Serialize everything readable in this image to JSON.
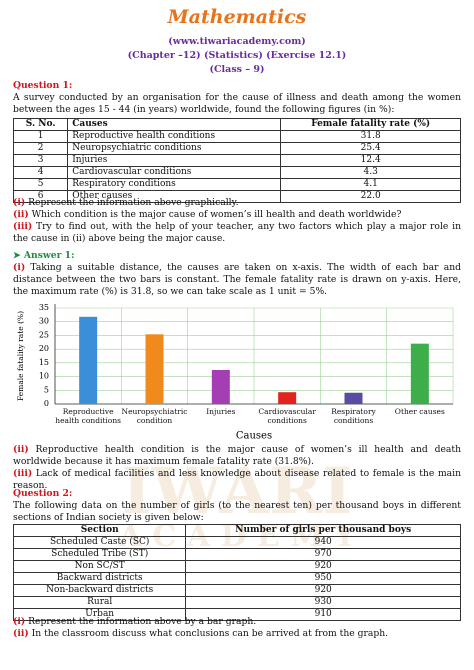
{
  "header": {
    "title": "Mathematics",
    "website": "(www.tiwariacademy.com)",
    "chapter": "(Chapter –12) (Statistics) (Exercise 12.1)",
    "class": "(Class – 9)"
  },
  "watermark": [
    "IWARI",
    "A C A D E M Y"
  ],
  "question1": {
    "label": "Question 1:",
    "text": "A survey conducted by an organisation for the cause of illness and death among the women between the ages 15 - 44 (in years) worldwide, found the following figures (in %):",
    "table": {
      "headers": [
        "S. No.",
        "Causes",
        "Female fatality rate (%)"
      ],
      "rows": [
        [
          "1",
          "Reproductive health conditions",
          "31.8"
        ],
        [
          "2",
          "Neuropsychiatric conditions",
          "25.4"
        ],
        [
          "3",
          "Injuries",
          "12.4"
        ],
        [
          "4",
          "Cardiovascular conditions",
          "4.3"
        ],
        [
          "5",
          "Respiratory conditions",
          "4.1"
        ],
        [
          "6",
          "Other causes",
          "22.0"
        ]
      ]
    },
    "parts": [
      {
        "num": "(i)",
        "text": " Represent the information above graphically."
      },
      {
        "num": "(ii)",
        "text": " Which condition is the major cause of women’s ill health and death worldwide?"
      },
      {
        "num": "(iii)",
        "text": " Try to find out, with the help of your teacher, any two factors which play a major role in the cause in (ii) above being the major cause."
      }
    ]
  },
  "answer1": {
    "label": "Answer 1:",
    "parts": [
      {
        "num": "(i)",
        "text": " Taking a suitable distance, the causes are taken on x-axis. The width of each bar and distance between the two bars is constant. The female fatality rate is drawn on y-axis. Here, the maximum rate (%) is 31.8, so we can take scale as 1 unit = 5%."
      },
      {
        "num": "(ii)",
        "text": " Reproductive health condition is the major cause of women’s ill health and death worldwide because it has maximum female fatality rate (31.8%)."
      },
      {
        "num": "(iii)",
        "text": " Lack of medical facilities and less knowledge about disease related to female is the main reason."
      }
    ]
  },
  "chart_data": {
    "type": "bar",
    "x_label": "Causes",
    "y_label": "Female fatality rate (%)",
    "categories": [
      "Reproductive health conditions",
      "Neuropsychiatric condition",
      "Injuries",
      "Cardiovascular conditions",
      "Respiratory conditions",
      "Other causes"
    ],
    "values": [
      31.8,
      25.4,
      12.4,
      4.3,
      4.1,
      22
    ],
    "colors": [
      "#3b8fd9",
      "#f08a1c",
      "#a43fb3",
      "#e2231f",
      "#5a4ba3",
      "#3cae4a"
    ],
    "ylim": [
      0,
      35
    ],
    "yticks": [
      0,
      5,
      10,
      15,
      20,
      25,
      30,
      35
    ],
    "grid": true
  },
  "question2": {
    "label": "Question 2:",
    "text": "The following data on the number of girls (to the nearest ten) per thousand boys in different sections of Indian society is given below:",
    "table": {
      "headers": [
        "Section",
        "Number of girls per thousand boys"
      ],
      "rows": [
        [
          "Scheduled Caste (SC)",
          "940"
        ],
        [
          "Scheduled Tribe (ST)",
          "970"
        ],
        [
          "Non SC/ST",
          "920"
        ],
        [
          "Backward districts",
          "950"
        ],
        [
          "Non-backward districts",
          "920"
        ],
        [
          "Rural",
          "930"
        ],
        [
          "Urban",
          "910"
        ]
      ]
    },
    "parts": [
      {
        "num": "(i)",
        "text": " Represent the information above by a bar graph."
      },
      {
        "num": "(ii)",
        "text": " In the classroom discuss what conclusions can be arrived at from the graph."
      }
    ]
  }
}
